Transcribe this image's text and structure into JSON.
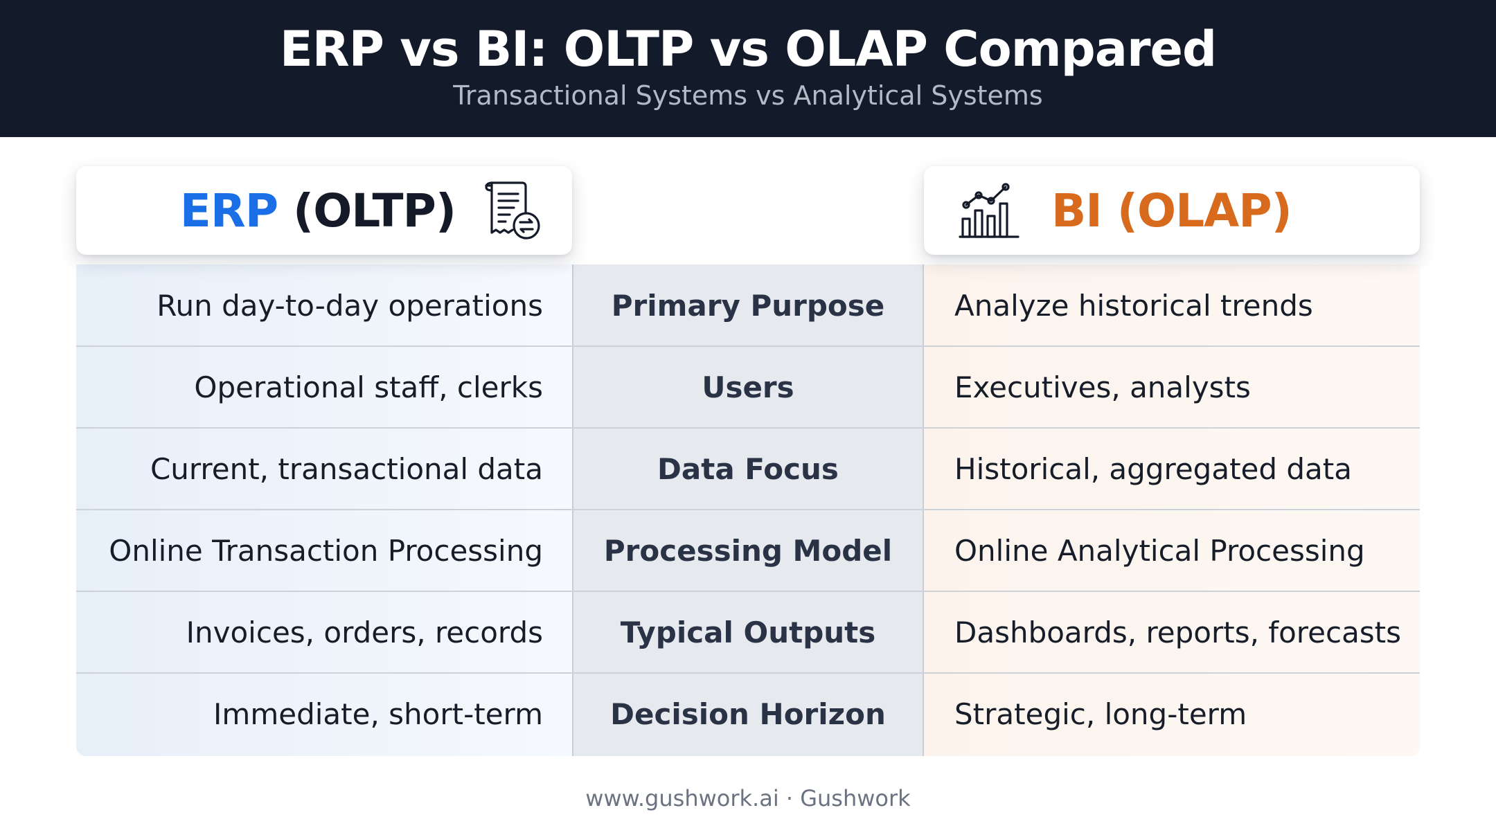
{
  "header": {
    "title": "ERP vs BI: OLTP vs OLAP Compared",
    "subtitle": "Transactional Systems vs Analytical Systems"
  },
  "columns": {
    "left": {
      "label_strong": "ERP",
      "label_rest": " (OLTP)",
      "icon": "receipt-sync-icon",
      "accent": "#1a6ee6"
    },
    "right": {
      "label": "BI (OLAP)",
      "icon": "bar-line-chart-icon",
      "accent": "#d86a1e"
    }
  },
  "rows": [
    {
      "erp": "Run day-to-day operations",
      "category": "Primary Purpose",
      "bi": "Analyze historical trends"
    },
    {
      "erp": "Operational staff, clerks",
      "category": "Users",
      "bi": "Executives, analysts"
    },
    {
      "erp": "Current, transactional data",
      "category": "Data Focus",
      "bi": "Historical, aggregated data"
    },
    {
      "erp": "Online Transaction Processing",
      "category": "Processing Model",
      "bi": "Online Analytical Processing"
    },
    {
      "erp": "Invoices, orders, records",
      "category": "Typical Outputs",
      "bi": "Dashboards, reports, forecasts"
    },
    {
      "erp": "Immediate, short-term",
      "category": "Decision Horizon",
      "bi": "Strategic, long-term"
    }
  ],
  "footer": {
    "text": "www.gushwork.ai · Gushwork"
  }
}
